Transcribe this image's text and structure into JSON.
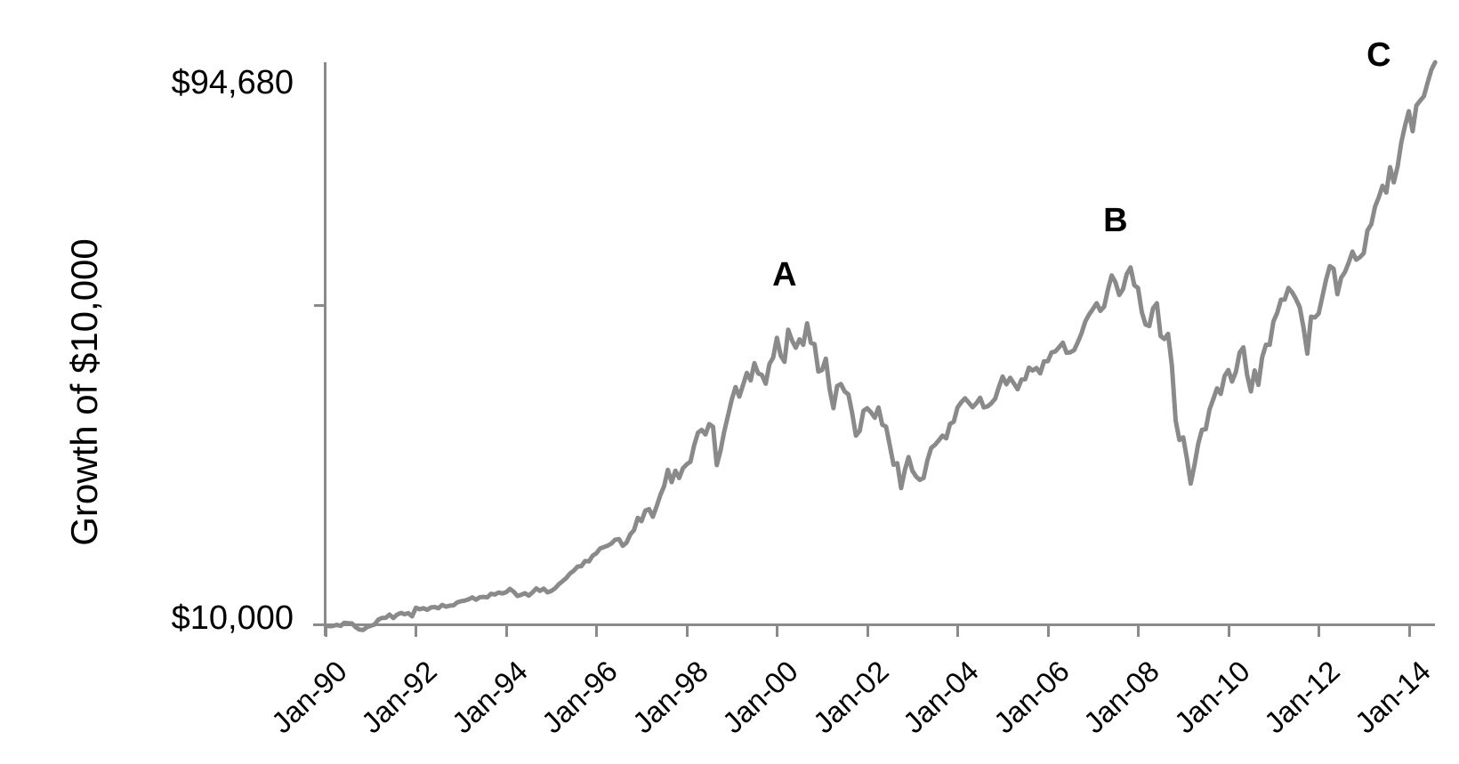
{
  "chart_data": {
    "type": "line",
    "title": "",
    "xlabel": "",
    "ylabel": "Growth of $10,000",
    "line_color": "#8a8a8a",
    "axis_color": "#8a8a8a",
    "grid": false,
    "legend": false,
    "ylim": [
      10000,
      94680
    ],
    "y_ticks": [
      {
        "label": "$94,680",
        "value": 94680
      },
      {
        "label": "",
        "value": 58000
      },
      {
        "label": "$10,000",
        "value": 10000
      }
    ],
    "x_tick_labels": [
      "Jan-90",
      "Jan-92",
      "Jan-94",
      "Jan-96",
      "Jan-98",
      "Jan-00",
      "Jan-02",
      "Jan-04",
      "Jan-06",
      "Jan-08",
      "Jan-10",
      "Jan-12",
      "Jan-14"
    ],
    "x_tick_interval_months": 24,
    "annotations": [
      {
        "text": "A",
        "month": 122,
        "value": 62700
      },
      {
        "text": "B",
        "month": 210,
        "value": 70860
      },
      {
        "text": "C",
        "month": 280,
        "value": 95750
      }
    ],
    "series": [
      {
        "name": "Growth of $10,000",
        "start": "Jan-1990",
        "interval": "monthly",
        "end_value_label": "$94,680",
        "values": [
          10000,
          9850,
          9900,
          10050,
          9900,
          10380,
          10310,
          10280,
          9700,
          9350,
          9300,
          9700,
          9900,
          10110,
          10834,
          11092,
          11123,
          11599,
          11069,
          11587,
          11859,
          11665,
          11821,
          11344,
          12640,
          12405,
          12564,
          12318,
          12676,
          12744,
          12559,
          13065,
          12801,
          12948,
          12995,
          13433,
          13609,
          13708,
          13893,
          14192,
          13844,
          14218,
          14265,
          14198,
          14739,
          14630,
          14927,
          14787,
          14969,
          15470,
          15052,
          14397,
          14584,
          14822,
          14456,
          14934,
          15542,
          15167,
          15514,
          14945,
          15163,
          15557,
          16161,
          16639,
          17123,
          17800,
          18218,
          18825,
          18876,
          19667,
          19598,
          20460,
          20839,
          21556,
          21763,
          21972,
          22295,
          22870,
          22964,
          21942,
          22407,
          23666,
          24315,
          26161,
          25648,
          27241,
          27462,
          26320,
          27891,
          29603,
          30923,
          33378,
          31522,
          33249,
          32139,
          33627,
          34205,
          34585,
          37079,
          38977,
          39371,
          38694,
          40265,
          39838,
          34077,
          36261,
          39209,
          41585,
          43980,
          45818,
          44393,
          46169,
          47956,
          46824,
          49423,
          47881,
          47642,
          46336,
          49269,
          50269,
          53230,
          50558,
          49602,
          54453,
          52814,
          51731,
          53004,
          52177,
          55417,
          52491,
          52271,
          48152,
          48388,
          50106,
          45536,
          42654,
          45968,
          46276,
          45151,
          44709,
          41910,
          38524,
          39260,
          42271,
          42643,
          42020,
          41209,
          42759,
          40168,
          39871,
          37032,
          34143,
          34369,
          30633,
          33329,
          35292,
          33217,
          32347,
          31862,
          32171,
          34822,
          36657,
          37126,
          37779,
          38516,
          38108,
          40265,
          40619,
          42747,
          43534,
          44139,
          43472,
          42790,
          43376,
          44218,
          42754,
          42925,
          43389,
          44053,
          45837,
          47395,
          46239,
          47210,
          46374,
          45493,
          46940,
          47006,
          48755,
          48311,
          48702,
          47889,
          49699,
          49714,
          51031,
          51169,
          51804,
          52498,
          50986,
          51057,
          51374,
          52597,
          53954,
          55713,
          56771,
          57566,
          58435,
          57290,
          57932,
          60498,
          62609,
          61570,
          59661,
          60556,
          62821,
          63820,
          61152,
          60730,
          57086,
          55231,
          54994,
          57672,
          58422,
          53497,
          53048,
          53817,
          49022,
          40791,
          37862,
          38263,
          35045,
          31313,
          34056,
          37315,
          39401,
          39480,
          42465,
          43998,
          45639,
          44790,
          47477,
          48393,
          46651,
          48097,
          50997,
          51803,
          47664,
          45171,
          48338,
          46158,
          50275,
          52191,
          52196,
          55683,
          57003,
          58958,
          58982,
          60728,
          60042,
          59039,
          57840,
          54699,
          50854,
          56412,
          56288,
          56862,
          59409,
          61976,
          64015,
          63612,
          59789,
          62252,
          63117,
          64537,
          66202,
          64977,
          65354,
          65949,
          69365,
          70308,
          72945,
          74353,
          76093,
          75073,
          78894,
          76606,
          79011,
          82646,
          85167,
          87322,
          84301,
          88154,
          88895,
          89553,
          91657,
          93554,
          94680
        ]
      }
    ]
  }
}
